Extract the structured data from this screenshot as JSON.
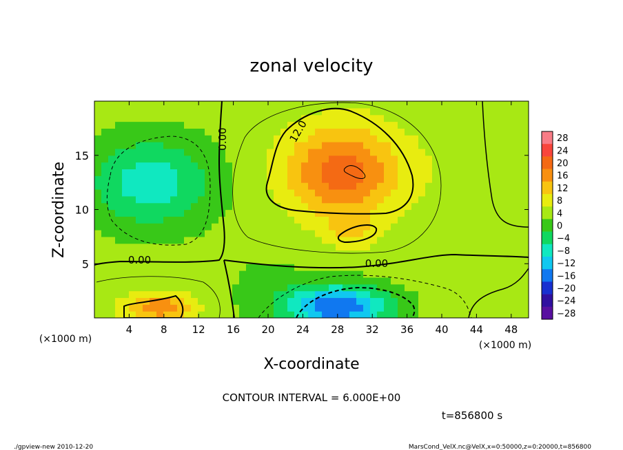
{
  "chart_data": {
    "type": "heatmap",
    "title": "zonal velocity",
    "xlabel": "X-coordinate",
    "ylabel": "Z-coordinate",
    "x_unit": "(×1000 m)",
    "xlim": [
      0,
      50
    ],
    "ylim": [
      0,
      20
    ],
    "x_ticks": [
      4,
      8,
      12,
      16,
      20,
      24,
      28,
      32,
      36,
      40,
      44,
      48
    ],
    "y_ticks": [
      5,
      10,
      15
    ],
    "contour_labels": [
      {
        "text": "0.00",
        "x": 14.8,
        "z": 16.5
      },
      {
        "text": "12.0",
        "x": 23.5,
        "z": 17.2
      },
      {
        "text": "0.00",
        "x": 5.2,
        "z": 5.3
      },
      {
        "text": "0.00",
        "x": 32.5,
        "z": 5.0
      }
    ],
    "contour_interval": "CONTOUR INTERVAL = 6.000E+00",
    "time": "t=856800 s",
    "colorbar": {
      "levels": [
        28,
        24,
        20,
        16,
        12,
        8,
        4,
        0,
        -4,
        -8,
        -12,
        -16,
        -20,
        -24,
        -28
      ],
      "colors": [
        "#f87c86",
        "#f8463c",
        "#f46a14",
        "#f89010",
        "#f8c410",
        "#e8ec10",
        "#a8e814",
        "#38c818",
        "#10d860",
        "#10e8c0",
        "#10c8f0",
        "#1078f0",
        "#1830d0",
        "#3010a0",
        "#5810a0"
      ]
    },
    "features": [
      {
        "desc": "positive max",
        "x": 28.5,
        "z": 13.5,
        "value": 20
      },
      {
        "desc": "positive lobe",
        "x": 29.5,
        "z": 8.0,
        "value": 14
      },
      {
        "desc": "positive near-surface",
        "x": 7.5,
        "z": 1.0,
        "value": 16
      },
      {
        "desc": "negative lobe",
        "x": 6.5,
        "z": 12.5,
        "value": -10
      },
      {
        "desc": "negative near-surface",
        "x": 28.0,
        "z": 1.0,
        "value": -18
      }
    ]
  },
  "footer": {
    "left": "./gpview-new  2010-12-20",
    "right": "MarsCond_VelX.nc@VelX,x=0:50000,z=0:20000,t=856800"
  }
}
